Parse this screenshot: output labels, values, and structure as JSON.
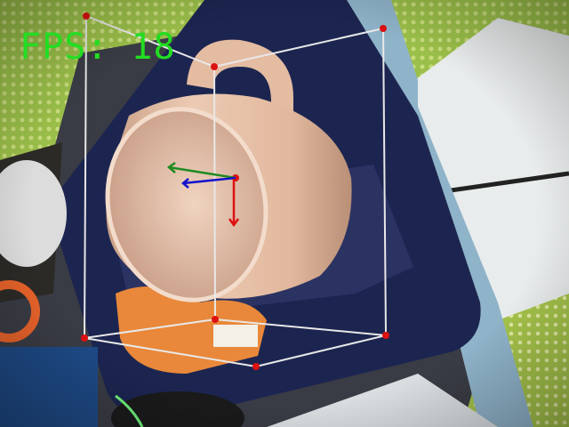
{
  "overlay": {
    "fps_text": "FPS: 18",
    "fps_color": "#22dd22",
    "box_edge_color": "#e8e8e8",
    "box_vertex_color": "#dd1111"
  },
  "axes": {
    "x_axis_color": "#1f8a1f",
    "y_axis_color": "#dd1111",
    "z_axis_color": "#1111cc"
  },
  "scene": {
    "subject": "mug",
    "mug_color": "#e8c3a8",
    "mousepad_color": "#1c2550",
    "desk_pattern_color": "#8cb33a"
  }
}
